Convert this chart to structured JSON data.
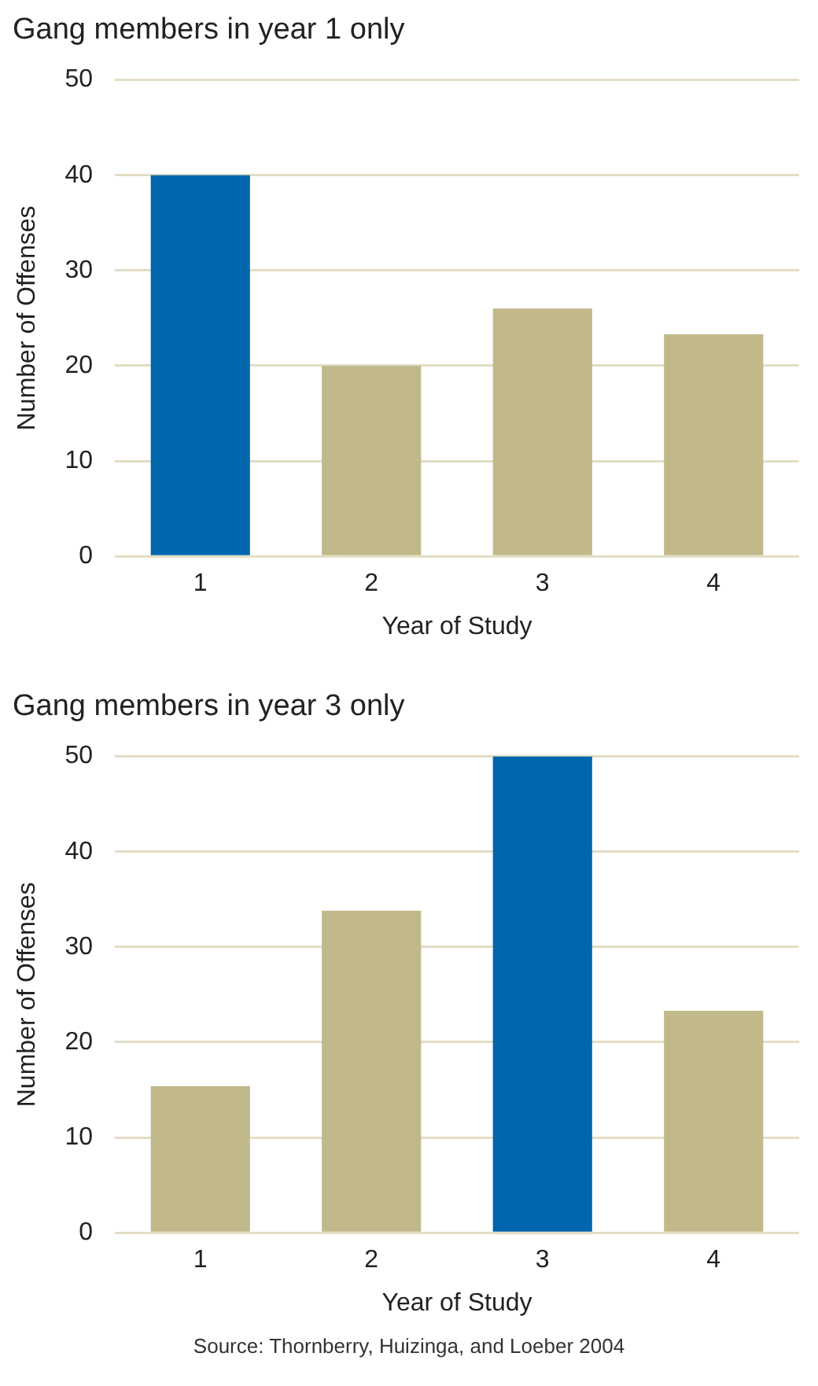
{
  "chart_data": [
    {
      "type": "bar",
      "title": "Gang members in year 1 only",
      "xlabel": "Year of Study",
      "ylabel": "Number of Offenses",
      "categories": [
        "1",
        "2",
        "3",
        "4"
      ],
      "values": [
        40,
        20,
        26,
        23.3
      ],
      "colors": [
        "#0066ae",
        "#c1b98a",
        "#c1b98a",
        "#c1b98a"
      ],
      "ylim": [
        0,
        50
      ],
      "yticks": [
        0,
        10,
        20,
        30,
        40,
        50
      ],
      "grid": "y"
    },
    {
      "type": "bar",
      "title": "Gang members in year 3 only",
      "xlabel": "Year of Study",
      "ylabel": "Number of Offenses",
      "categories": [
        "1",
        "2",
        "3",
        "4"
      ],
      "values": [
        15.4,
        33.8,
        50,
        23.3
      ],
      "colors": [
        "#c1b98a",
        "#c1b98a",
        "#0066ae",
        "#c1b98a"
      ],
      "ylim": [
        0,
        50
      ],
      "yticks": [
        0,
        10,
        20,
        30,
        40,
        50
      ],
      "grid": "y",
      "annotations": [
        "Source: Thornberry, Huizinga, and Loeber 2004"
      ]
    }
  ]
}
